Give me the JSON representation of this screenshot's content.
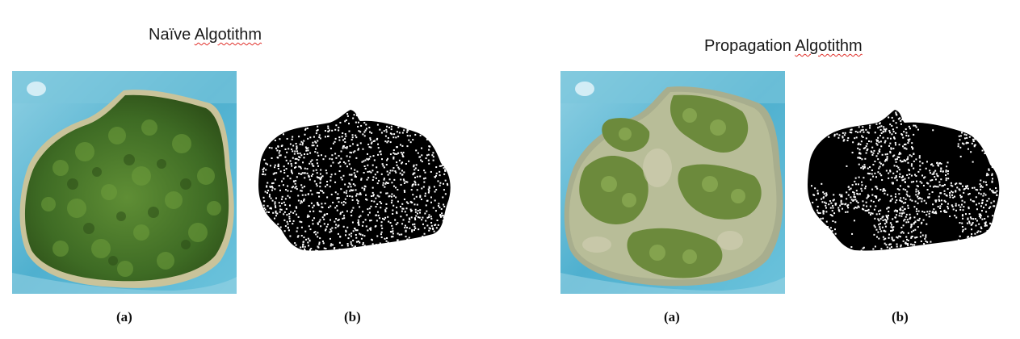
{
  "left": {
    "title_word1": "Naïve",
    "title_word2": "Algotithm",
    "caption_a": "(a)",
    "caption_b": "(b)"
  },
  "right": {
    "title_word1": "Propagation",
    "title_word2": "Algotithm",
    "caption_a": "(a)",
    "caption_b": "(b)"
  },
  "colors": {
    "sea": "#5fb6d2",
    "forest": "#3f6b24",
    "mask": "#000000",
    "dots": "#ffffff"
  }
}
